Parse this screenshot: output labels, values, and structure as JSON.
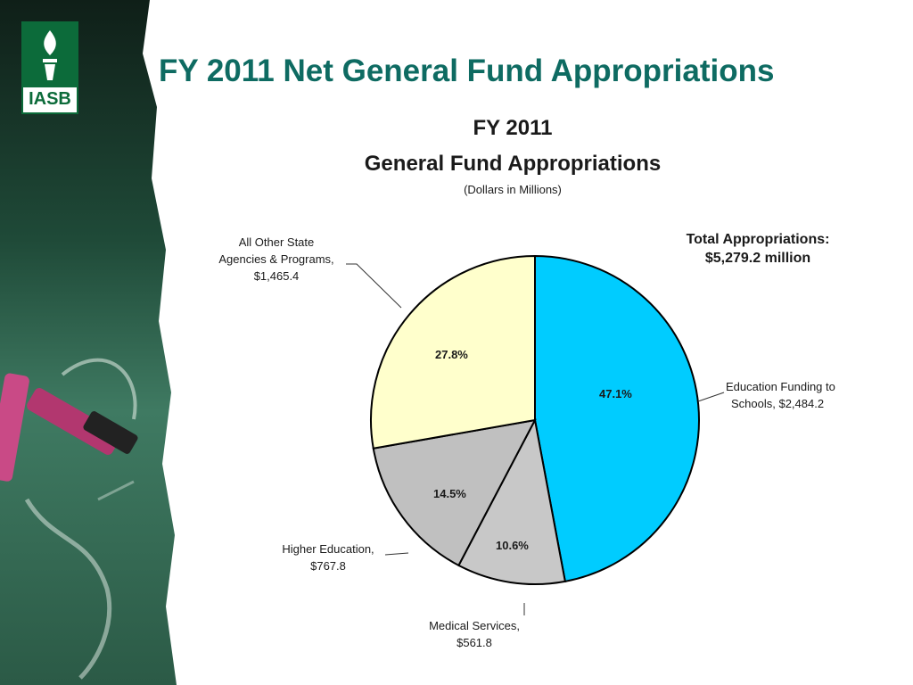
{
  "slide": {
    "title": "FY 2011 Net General Fund Appropriations",
    "logo_text": "IASB"
  },
  "chart_data": {
    "type": "pie",
    "title": "FY 2011",
    "subtitle": "General Fund Appropriations",
    "units_note": "(Dollars in Millions)",
    "total": {
      "line1": "Total Appropriations:",
      "line2": "$5,279.2 million"
    },
    "slices": [
      {
        "label_line1": "Education Funding to",
        "label_line2": "Schools,  $2,484.2",
        "value": 2484.2,
        "percent": 47.1,
        "percent_label": "47.1%",
        "color": "#00ccff"
      },
      {
        "label_line1": "Medical Services,",
        "label_line2": "$561.8",
        "value": 561.8,
        "percent": 10.6,
        "percent_label": "10.6%",
        "color": "#c8c8c8"
      },
      {
        "label_line1": "Higher Education,",
        "label_line2": "$767.8",
        "value": 767.8,
        "percent": 14.5,
        "percent_label": "14.5%",
        "color": "#c0c0c0"
      },
      {
        "label_line1": "All Other State",
        "label_line2": "Agencies & Programs,",
        "label_line3": "$1,465.4",
        "value": 1465.4,
        "percent": 27.8,
        "percent_label": "27.8%",
        "color": "#ffffcc"
      }
    ]
  },
  "colors": {
    "title": "#0e6b62",
    "logo_green": "#0c6b3a",
    "chalkboard": "#1f4a38"
  }
}
